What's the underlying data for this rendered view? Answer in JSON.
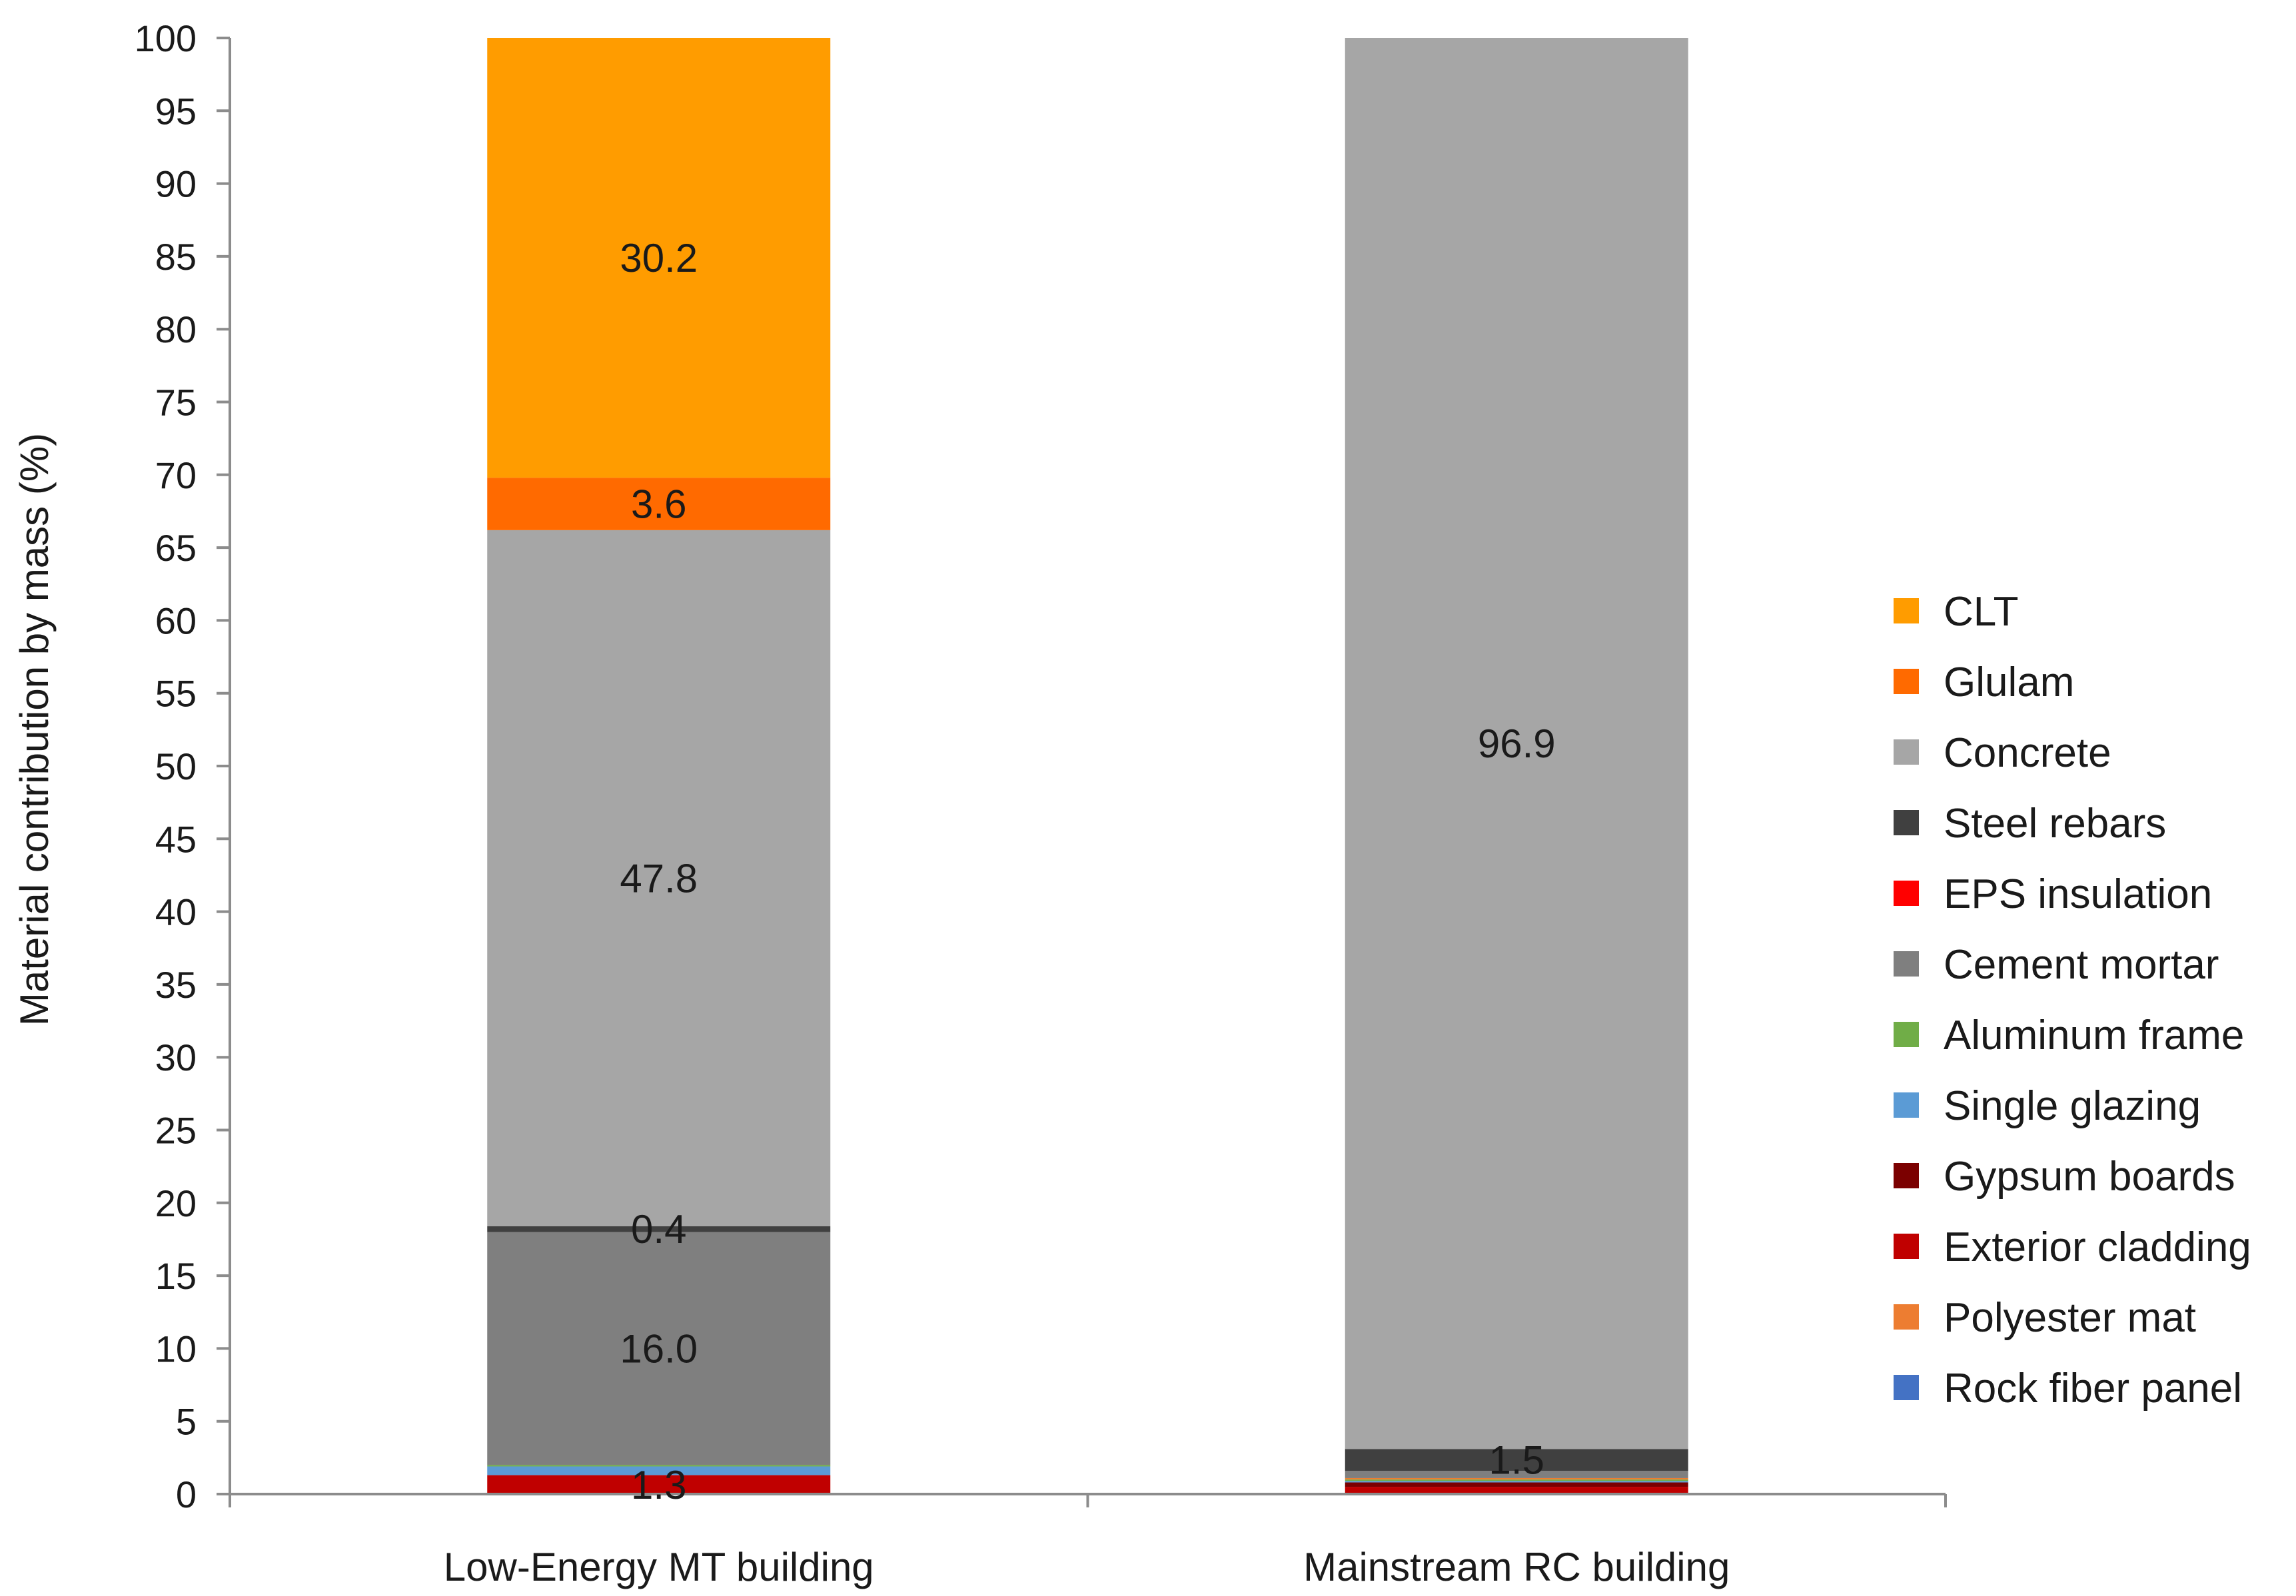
{
  "chart_data": {
    "type": "bar",
    "stacked": true,
    "title": "",
    "xlabel": "",
    "ylabel": "Material contribution by mass (%)",
    "ylim": [
      0,
      100
    ],
    "yticks": [
      0,
      5,
      10,
      15,
      20,
      25,
      30,
      35,
      40,
      45,
      50,
      55,
      60,
      65,
      70,
      75,
      80,
      85,
      90,
      95,
      100
    ],
    "categories": [
      "Low-Energy MT building",
      "Mainstream RC building"
    ],
    "series": [
      {
        "name": "Exterior cladding",
        "color": "#c00000",
        "values": [
          1.3,
          0.5
        ]
      },
      {
        "name": "Gypsum boards",
        "color": "#7b0000",
        "values": [
          0.0,
          0.3
        ]
      },
      {
        "name": "Single glazing",
        "color": "#5b9bd5",
        "values": [
          0.6,
          0.1
        ]
      },
      {
        "name": "Aluminum frame",
        "color": "#70ad47",
        "values": [
          0.1,
          0.1
        ]
      },
      {
        "name": "Polyester mat",
        "color": "#ed7d31",
        "values": [
          0.0,
          0.1
        ]
      },
      {
        "name": "Rock fiber panel",
        "color": "#4472c4",
        "values": [
          0.0,
          0.0
        ]
      },
      {
        "name": "EPS insulation",
        "color": "#ff0000",
        "values": [
          0.0,
          0.0
        ]
      },
      {
        "name": "Cement mortar",
        "color": "#7f7f7f",
        "values": [
          16.0,
          0.5
        ]
      },
      {
        "name": "Steel rebars",
        "color": "#404040",
        "values": [
          0.4,
          1.5
        ]
      },
      {
        "name": "Concrete",
        "color": "#a6a6a6",
        "values": [
          47.8,
          96.9
        ]
      },
      {
        "name": "Glulam",
        "color": "#ff6a00",
        "values": [
          3.6,
          0.0
        ]
      },
      {
        "name": "CLT",
        "color": "#ff9c00",
        "values": [
          30.2,
          0.0
        ]
      }
    ],
    "data_labels": [
      {
        "category": "Low-Energy MT building",
        "series": "Exterior cladding",
        "text": "1.3"
      },
      {
        "category": "Low-Energy MT building",
        "series": "Cement mortar",
        "text": "16.0"
      },
      {
        "category": "Low-Energy MT building",
        "series": "Steel rebars",
        "text": "0.4"
      },
      {
        "category": "Low-Energy MT building",
        "series": "Concrete",
        "text": "47.8"
      },
      {
        "category": "Low-Energy MT building",
        "series": "Glulam",
        "text": "3.6"
      },
      {
        "category": "Low-Energy MT building",
        "series": "CLT",
        "text": "30.2"
      },
      {
        "category": "Mainstream RC building",
        "series": "Steel rebars",
        "text": "1.5"
      },
      {
        "category": "Mainstream RC building",
        "series": "Concrete",
        "text": "96.9"
      }
    ],
    "legend": {
      "position": "right",
      "entries": [
        {
          "label": "CLT",
          "color": "#ff9c00"
        },
        {
          "label": "Glulam",
          "color": "#ff6a00"
        },
        {
          "label": "Concrete",
          "color": "#a6a6a6"
        },
        {
          "label": "Steel rebars",
          "color": "#404040"
        },
        {
          "label": "EPS insulation",
          "color": "#ff0000"
        },
        {
          "label": "Cement mortar",
          "color": "#7f7f7f"
        },
        {
          "label": "Aluminum frame",
          "color": "#70ad47"
        },
        {
          "label": "Single glazing",
          "color": "#5b9bd5"
        },
        {
          "label": "Gypsum boards",
          "color": "#7b0000"
        },
        {
          "label": "Exterior cladding",
          "color": "#c00000"
        },
        {
          "label": "Polyester mat",
          "color": "#ed7d31"
        },
        {
          "label": "Rock fiber panel",
          "color": "#4472c4"
        }
      ]
    },
    "grid": false
  }
}
